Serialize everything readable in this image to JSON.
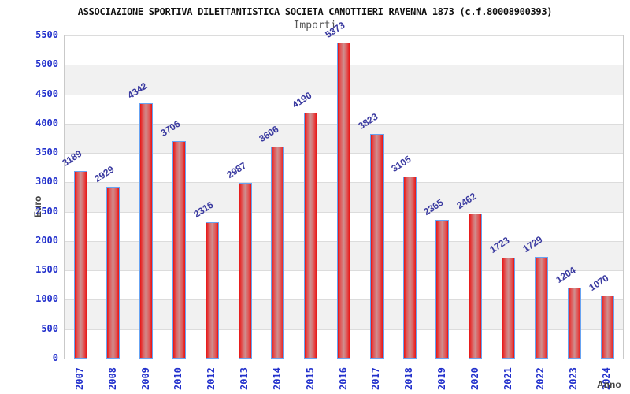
{
  "header": {
    "title": "ASSOCIAZIONE SPORTIVA DILETTANTISTICA SOCIETA CANOTTIERI RAVENNA 1873 (c.f.80008900393)",
    "subtitle": "Importi"
  },
  "chart_data": {
    "type": "bar",
    "title": "ASSOCIAZIONE SPORTIVA DILETTANTISTICA SOCIETA CANOTTIERI RAVENNA 1873 (c.f.80008900393)",
    "subtitle": "Importi",
    "xlabel": "Anno",
    "ylabel": "Euro",
    "categories": [
      "2007",
      "2008",
      "2009",
      "2010",
      "2012",
      "2013",
      "2014",
      "2015",
      "2016",
      "2017",
      "2018",
      "2019",
      "2020",
      "2021",
      "2022",
      "2023",
      "2024"
    ],
    "values": [
      3189,
      2929,
      4342,
      3706,
      2316,
      2987,
      3606,
      4190,
      5373,
      3823,
      3105,
      2365,
      2462,
      1723,
      1729,
      1204,
      1070
    ],
    "ylim": [
      0,
      5500
    ],
    "ytick_step": 500,
    "grid": true,
    "legend": "none",
    "colors": {
      "bar_edge_red": "#e81414",
      "bar_center_pink": "#cf8f8f",
      "bar_border_blue": "#67a3f2",
      "value_label_blue": "#3a3aa0",
      "tick_label_blue": "#2230cc",
      "axis_text_gray": "#444444",
      "band_gray": "#f1f1f1",
      "grid_gray": "#dcdcdc",
      "title_black": "#111111",
      "subtitle_gray": "#555555"
    }
  }
}
